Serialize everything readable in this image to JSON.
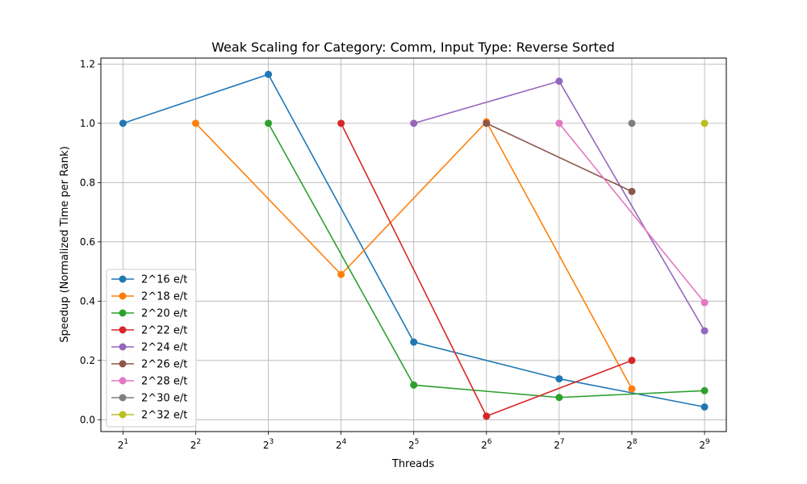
{
  "chart_data": {
    "type": "line",
    "title": "Weak Scaling for Category: Comm, Input Type: Reverse Sorted",
    "xlabel": "Threads",
    "ylabel": "Speedup (Normalized Time per Rank)",
    "x_scale": "log2",
    "x_ticks": [
      {
        "value": 2,
        "base": "2",
        "exp": "1"
      },
      {
        "value": 4,
        "base": "2",
        "exp": "2"
      },
      {
        "value": 8,
        "base": "2",
        "exp": "3"
      },
      {
        "value": 16,
        "base": "2",
        "exp": "4"
      },
      {
        "value": 32,
        "base": "2",
        "exp": "5"
      },
      {
        "value": 64,
        "base": "2",
        "exp": "6"
      },
      {
        "value": 128,
        "base": "2",
        "exp": "7"
      },
      {
        "value": 256,
        "base": "2",
        "exp": "8"
      },
      {
        "value": 512,
        "base": "2",
        "exp": "9"
      }
    ],
    "xlim": [
      1.62,
      630
    ],
    "ylim": [
      -0.04,
      1.22
    ],
    "y_ticks": [
      "0.0",
      "0.2",
      "0.4",
      "0.6",
      "0.8",
      "1.0",
      "1.2"
    ],
    "grid": true,
    "legend_position": "lower-left",
    "series": [
      {
        "name": "2^16 e/t",
        "color": "#1f77b4",
        "x": [
          2,
          8,
          32,
          128,
          512
        ],
        "y": [
          1.0,
          1.165,
          0.262,
          0.138,
          0.043
        ]
      },
      {
        "name": "2^18 e/t",
        "color": "#ff7f0e",
        "x": [
          4,
          16,
          64,
          256
        ],
        "y": [
          1.0,
          0.49,
          1.005,
          0.104
        ]
      },
      {
        "name": "2^20 e/t",
        "color": "#2ca02c",
        "x": [
          8,
          32,
          128,
          512
        ],
        "y": [
          1.0,
          0.117,
          0.075,
          0.098
        ]
      },
      {
        "name": "2^22 e/t",
        "color": "#d62728",
        "x": [
          16,
          64,
          256
        ],
        "y": [
          1.0,
          0.012,
          0.2
        ]
      },
      {
        "name": "2^24 e/t",
        "color": "#9467bd",
        "x": [
          32,
          128,
          512
        ],
        "y": [
          1.0,
          1.142,
          0.3
        ]
      },
      {
        "name": "2^26 e/t",
        "color": "#8c564b",
        "x": [
          64,
          256
        ],
        "y": [
          1.0,
          0.77
        ]
      },
      {
        "name": "2^28 e/t",
        "color": "#e377c2",
        "x": [
          128,
          512
        ],
        "y": [
          1.0,
          0.395
        ]
      },
      {
        "name": "2^30 e/t",
        "color": "#7f7f7f",
        "x": [
          256
        ],
        "y": [
          1.0
        ]
      },
      {
        "name": "2^32 e/t",
        "color": "#bcbd22",
        "x": [
          512
        ],
        "y": [
          1.0
        ]
      }
    ]
  }
}
